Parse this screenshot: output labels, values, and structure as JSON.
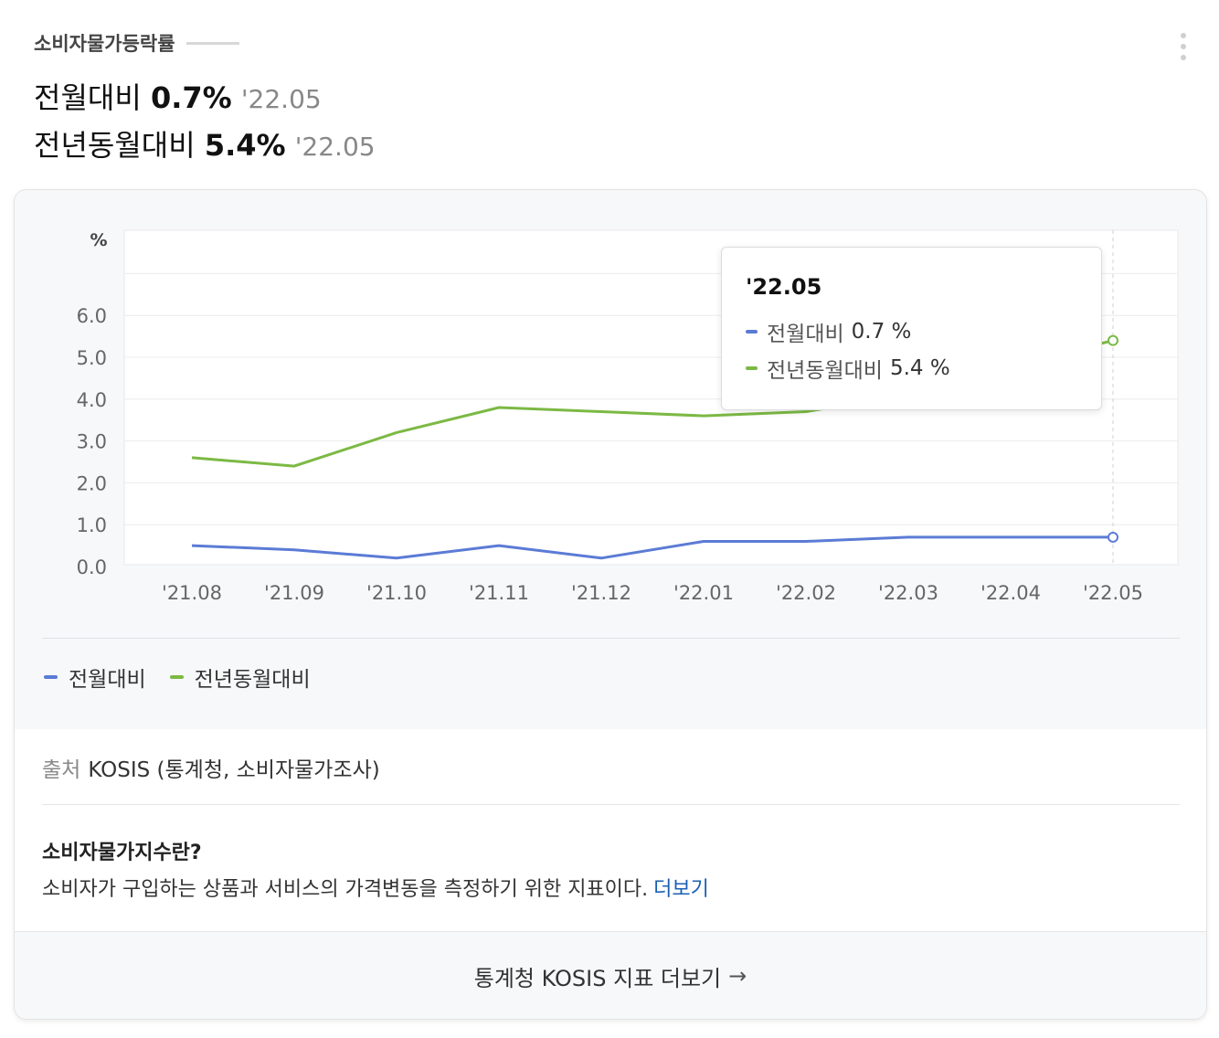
{
  "header": {
    "title": "소비자물가등락률",
    "stats": [
      {
        "label": "전월대비",
        "value": "0.7%",
        "date": "'22.05"
      },
      {
        "label": "전년동월대비",
        "value": "5.4%",
        "date": "'22.05"
      }
    ]
  },
  "chart_data": {
    "type": "line",
    "ylabel": "%",
    "ylim": [
      0,
      6
    ],
    "yticks": [
      "0.0",
      "1.0",
      "2.0",
      "3.0",
      "4.0",
      "5.0",
      "6.0"
    ],
    "categories": [
      "'21.08",
      "'21.09",
      "'21.10",
      "'21.11",
      "'21.12",
      "'22.01",
      "'22.02",
      "'22.03",
      "'22.04",
      "'22.05"
    ],
    "series": [
      {
        "name": "전월대비",
        "color": "#5b7bd5",
        "values": [
          0.5,
          0.4,
          0.2,
          0.5,
          0.2,
          0.6,
          0.6,
          0.7,
          0.7,
          0.7
        ]
      },
      {
        "name": "전년동월대비",
        "color": "#7cb944",
        "values": [
          2.6,
          2.4,
          3.2,
          3.8,
          3.7,
          3.6,
          3.7,
          4.1,
          4.8,
          5.4
        ]
      }
    ],
    "grid": true,
    "legend_position": "bottom-left"
  },
  "tooltip": {
    "date": "'22.05",
    "rows": [
      {
        "name": "전월대비",
        "value": "0.7 %"
      },
      {
        "name": "전년동월대비",
        "value": "5.4 %"
      }
    ]
  },
  "source": {
    "label": "출처",
    "text": "KOSIS (통계청, 소비자물가조사)"
  },
  "info": {
    "title": "소비자물가지수란?",
    "description": "소비자가 구입하는 상품과 서비스의 가격변동을 측정하기 위한 지표이다.",
    "more_label": "더보기"
  },
  "footer": {
    "label": "통계청 KOSIS 지표 더보기",
    "arrow": "→"
  }
}
